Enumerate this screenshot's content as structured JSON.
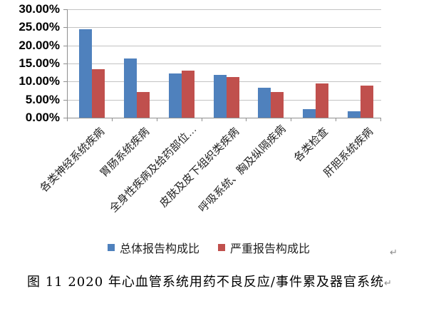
{
  "figure": {
    "caption": "图 11  2020 年心血管系统用药不良反应/事件累及器官系统",
    "return_mark": "↵"
  },
  "chart_data": {
    "type": "bar",
    "title": "",
    "xlabel": "",
    "ylabel": "",
    "categories": [
      "各类神经系统疾病",
      "胃肠系统疾病",
      "全身性疾病及给药部位…",
      "皮肤及皮下组织类疾病",
      "呼吸系统、胸及纵隔疾病",
      "各类检查",
      "肝胆系统疾病"
    ],
    "series": [
      {
        "name": "总体报告构成比",
        "color": "#4F81BD",
        "values": [
          24.4,
          16.3,
          12.2,
          11.9,
          8.2,
          2.3,
          1.7
        ]
      },
      {
        "name": "严重报告构成比",
        "color": "#C0504D",
        "values": [
          13.5,
          7.1,
          13.0,
          11.2,
          7.1,
          9.5,
          8.9
        ]
      }
    ],
    "ylim": [
      0,
      30
    ],
    "ytick_step": 5,
    "ytick_labels": [
      "30.00%",
      "25.00%",
      "20.00%",
      "15.00%",
      "10.00%",
      "5.00%",
      "0.00%"
    ],
    "grid": true,
    "legend_position": "bottom"
  }
}
